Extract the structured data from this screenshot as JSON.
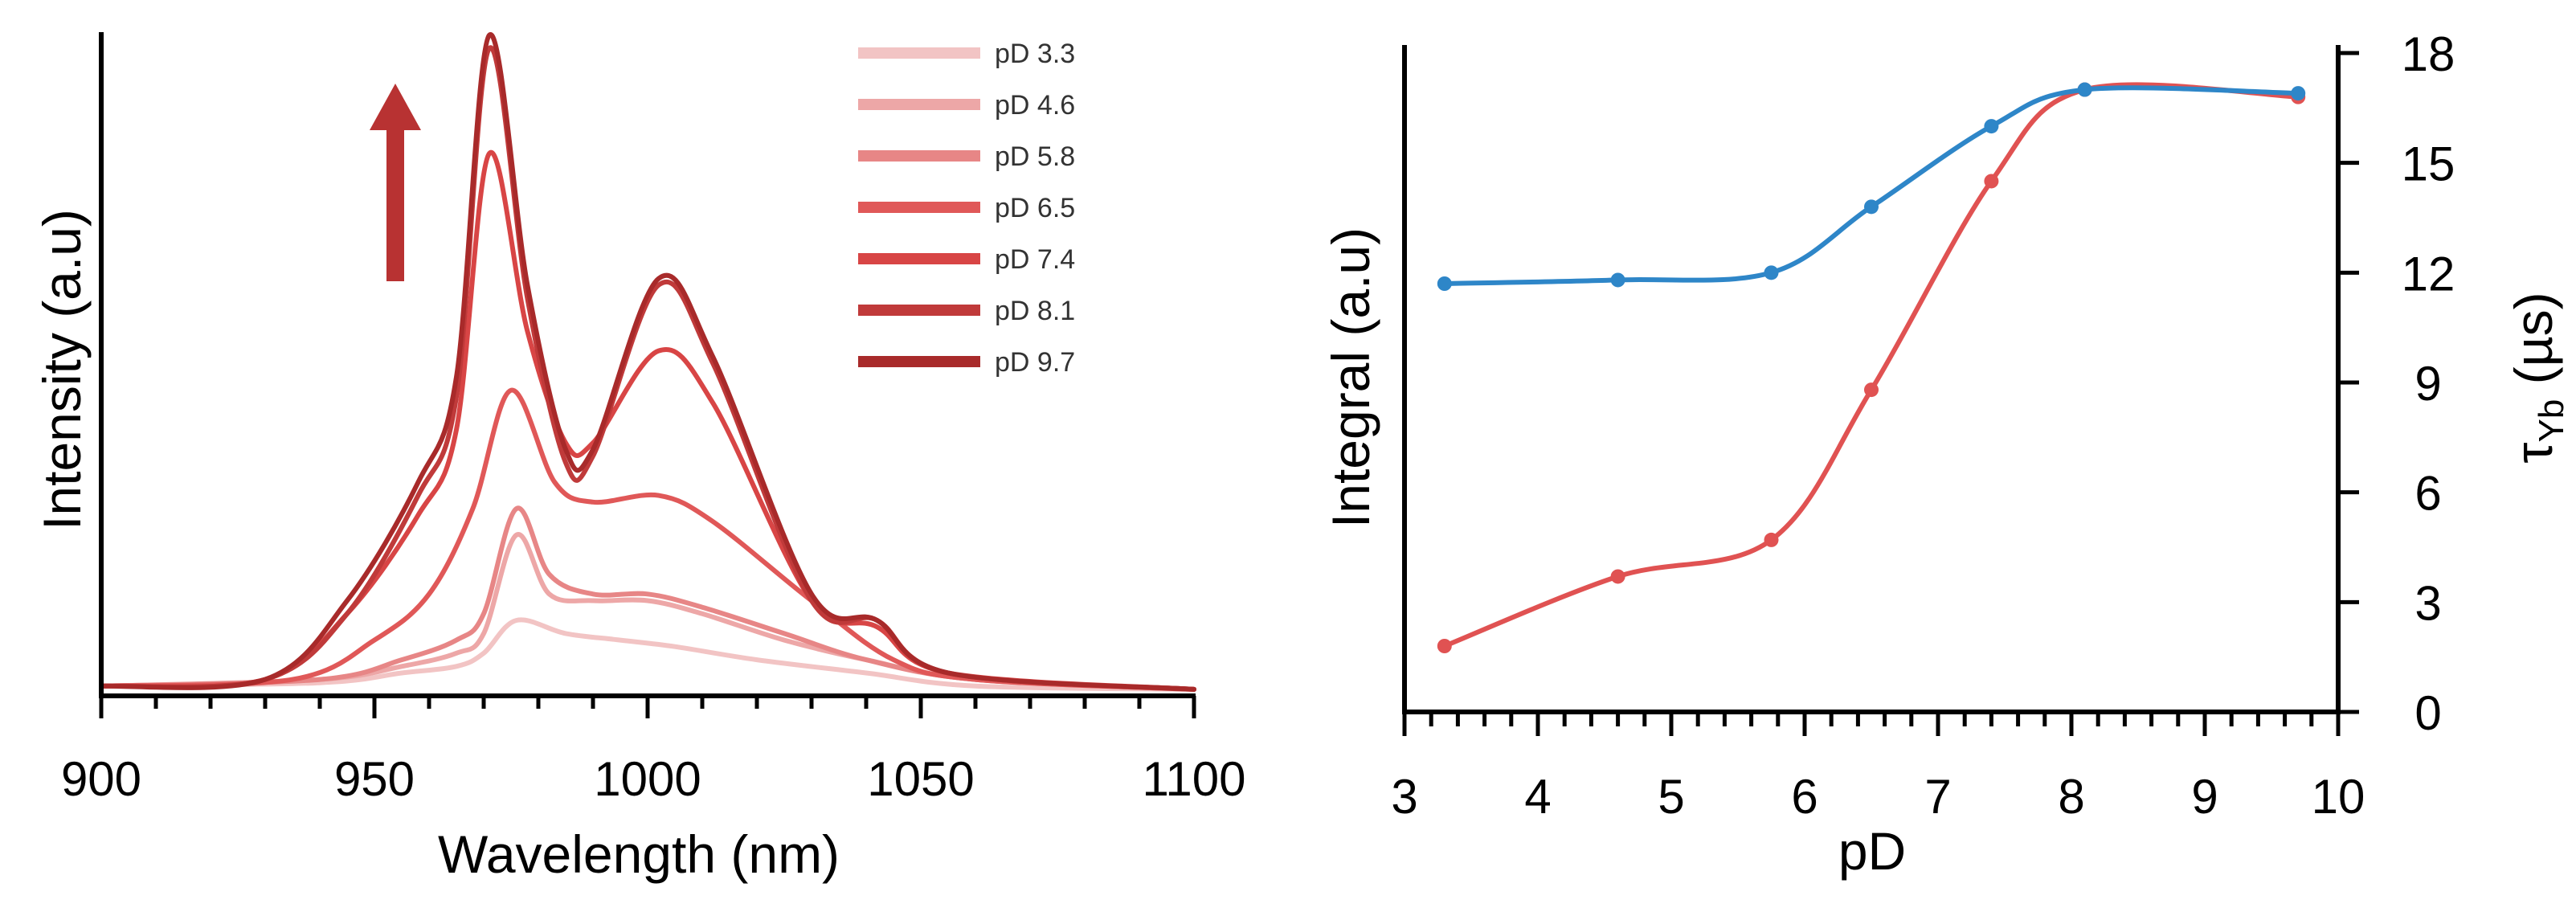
{
  "chart_data": [
    {
      "type": "line",
      "title": "",
      "xlabel": "Wavelength (nm)",
      "ylabel": "Intensity (a.u)",
      "xlim": [
        900,
        1100
      ],
      "ylim": [
        0,
        100
      ],
      "xticks": [
        900,
        950,
        1000,
        1050,
        1100
      ],
      "legend_position": "top-right",
      "annotation": "increasing-pD-arrow",
      "series": [
        {
          "name": "pD 3.3",
          "color": "#f2c4c4",
          "peaks": [
            [
              900,
              1
            ],
            [
              940,
              1.5
            ],
            [
              955,
              3
            ],
            [
              965,
              4
            ],
            [
              970,
              6
            ],
            [
              976,
              11
            ],
            [
              985,
              9
            ],
            [
              995,
              8
            ],
            [
              1005,
              7
            ],
            [
              1020,
              5
            ],
            [
              1040,
              3
            ],
            [
              1060,
              1
            ],
            [
              1100,
              0.5
            ]
          ]
        },
        {
          "name": "pD 4.6",
          "color": "#eda7a7",
          "peaks": [
            [
              900,
              1
            ],
            [
              940,
              2
            ],
            [
              955,
              4
            ],
            [
              965,
              6
            ],
            [
              970,
              9
            ],
            [
              976,
              24
            ],
            [
              982,
              15
            ],
            [
              990,
              14
            ],
            [
              1000,
              14
            ],
            [
              1010,
              12
            ],
            [
              1025,
              8
            ],
            [
              1040,
              5
            ],
            [
              1060,
              2
            ],
            [
              1100,
              0.5
            ]
          ]
        },
        {
          "name": "pD 5.8",
          "color": "#e78686",
          "peaks": [
            [
              900,
              1
            ],
            [
              940,
              2
            ],
            [
              955,
              5
            ],
            [
              965,
              8
            ],
            [
              970,
              12
            ],
            [
              976,
              28
            ],
            [
              982,
              18
            ],
            [
              990,
              15
            ],
            [
              1000,
              15
            ],
            [
              1010,
              13
            ],
            [
              1025,
              9
            ],
            [
              1040,
              5
            ],
            [
              1060,
              2
            ],
            [
              1100,
              0.5
            ]
          ]
        },
        {
          "name": "pD 6.5",
          "color": "#e05858",
          "peaks": [
            [
              900,
              1
            ],
            [
              935,
              2
            ],
            [
              950,
              8
            ],
            [
              960,
              15
            ],
            [
              968,
              28
            ],
            [
              975,
              46
            ],
            [
              983,
              32
            ],
            [
              990,
              29
            ],
            [
              1002,
              30
            ],
            [
              1012,
              26
            ],
            [
              1030,
              14
            ],
            [
              1045,
              5
            ],
            [
              1060,
              2
            ],
            [
              1100,
              0.5
            ]
          ]
        },
        {
          "name": "pD 7.4",
          "color": "#d84545",
          "peaks": [
            [
              900,
              1
            ],
            [
              930,
              2
            ],
            [
              945,
              12
            ],
            [
              958,
              27
            ],
            [
              965,
              40
            ],
            [
              971,
              82
            ],
            [
              978,
              55
            ],
            [
              985,
              38
            ],
            [
              990,
              38
            ],
            [
              1002,
              52
            ],
            [
              1012,
              44
            ],
            [
              1030,
              14
            ],
            [
              1042,
              10
            ],
            [
              1055,
              3
            ],
            [
              1100,
              0.5
            ]
          ]
        },
        {
          "name": "pD 8.1",
          "color": "#c03a3a",
          "peaks": [
            [
              900,
              1
            ],
            [
              930,
              2
            ],
            [
              945,
              12
            ],
            [
              958,
              30
            ],
            [
              965,
              45
            ],
            [
              971,
              98
            ],
            [
              978,
              60
            ],
            [
              985,
              35
            ],
            [
              990,
              36
            ],
            [
              1002,
              62
            ],
            [
              1012,
              50
            ],
            [
              1030,
              14
            ],
            [
              1042,
              11
            ],
            [
              1055,
              3
            ],
            [
              1100,
              0.5
            ]
          ]
        },
        {
          "name": "pD 9.7",
          "color": "#a82a2a",
          "peaks": [
            [
              900,
              1
            ],
            [
              930,
              2
            ],
            [
              945,
              14
            ],
            [
              958,
              32
            ],
            [
              965,
              48
            ],
            [
              971,
              100
            ],
            [
              978,
              62
            ],
            [
              985,
              37
            ],
            [
              990,
              37
            ],
            [
              1002,
              63
            ],
            [
              1012,
              51
            ],
            [
              1030,
              15
            ],
            [
              1042,
              11
            ],
            [
              1055,
              3
            ],
            [
              1100,
              0.5
            ]
          ]
        }
      ]
    },
    {
      "type": "line",
      "title": "",
      "xlabel": "pD",
      "ylabel": "Integral (a.u)",
      "y2label": "τ",
      "y2label_sub": "Yb",
      "y2label_unit": " (µs)",
      "xlim": [
        3,
        10
      ],
      "xticks": [
        3,
        4,
        5,
        6,
        7,
        8,
        9,
        10
      ],
      "y2lim": [
        0,
        18
      ],
      "y2ticks": [
        0,
        3,
        6,
        9,
        12,
        15,
        18
      ],
      "series": [
        {
          "name": "Integral",
          "color": "#e05252",
          "axis": "left",
          "x": [
            3.3,
            4.6,
            5.75,
            6.5,
            7.4,
            8.1,
            9.7
          ],
          "y": [
            1.8,
            3.7,
            4.7,
            8.8,
            14.5,
            17.0,
            16.8
          ]
        },
        {
          "name": "τYb",
          "color": "#2e86c8",
          "axis": "right",
          "x": [
            3.3,
            4.6,
            5.75,
            6.5,
            7.4,
            8.1,
            9.7
          ],
          "y": [
            11.7,
            11.8,
            12.0,
            13.8,
            16.0,
            17.0,
            16.9
          ]
        }
      ]
    }
  ]
}
